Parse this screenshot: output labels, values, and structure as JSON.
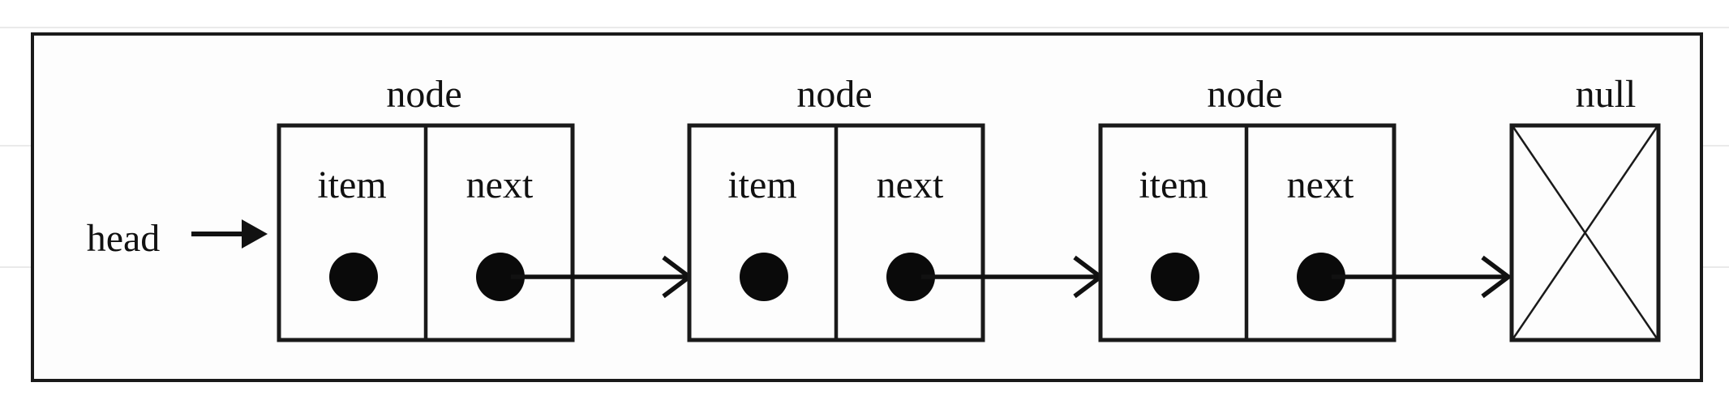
{
  "diagram": {
    "head_label": "head",
    "nodes": [
      {
        "title": "node",
        "item_label": "item",
        "next_label": "next"
      },
      {
        "title": "node",
        "item_label": "item",
        "next_label": "next"
      },
      {
        "title": "node",
        "item_label": "item",
        "next_label": "next"
      }
    ],
    "terminal": {
      "title": "null"
    }
  }
}
